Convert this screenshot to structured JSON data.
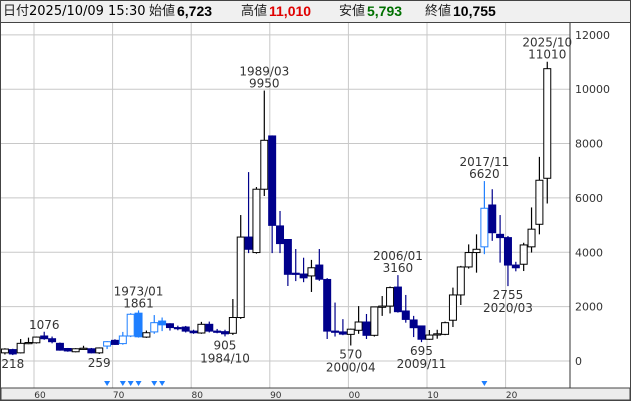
{
  "header": {
    "date_label": "日付",
    "date_value": "2025/10/09 15:30",
    "open_label": "始値",
    "open_value": "6,723",
    "high_label": "高値",
    "high_value": "11,010",
    "low_label": "安値",
    "low_value": "5,793",
    "close_label": "終値",
    "close_value": "10,755"
  },
  "colors": {
    "up_border": "#000000",
    "down_fill": "#00008b",
    "adjusted": "#1e7fff",
    "high_text": "#e00000",
    "low_text": "#007000",
    "grid": "#c8c8c8"
  },
  "chart_data": {
    "type": "candlestick",
    "period": "yearly",
    "y_ticks": [
      0,
      2000,
      4000,
      6000,
      8000,
      10000,
      12000
    ],
    "ylim": [
      -500,
      12300
    ],
    "x_ticks": [
      {
        "year": 1960,
        "label": "60"
      },
      {
        "year": 1970,
        "label": "70"
      },
      {
        "year": 1980,
        "label": "80"
      },
      {
        "year": 1990,
        "label": "90"
      },
      {
        "year": 2000,
        "label": "00"
      },
      {
        "year": 2010,
        "label": "10"
      },
      {
        "year": 2020,
        "label": "20"
      }
    ],
    "grid": true,
    "marker_years": [
      1969,
      1971,
      1972,
      1973,
      1975,
      1976,
      2017
    ],
    "candles": [
      [
        1956,
        300,
        470,
        240,
        440,
        "up"
      ],
      [
        1957,
        420,
        450,
        218,
        260,
        "down"
      ],
      [
        1958,
        300,
        810,
        280,
        650,
        "up"
      ],
      [
        1959,
        650,
        860,
        620,
        680,
        "up"
      ],
      [
        1960,
        670,
        900,
        640,
        880,
        "up"
      ],
      [
        1961,
        920,
        1076,
        780,
        820,
        "down"
      ],
      [
        1962,
        820,
        900,
        650,
        710,
        "down"
      ],
      [
        1963,
        650,
        680,
        380,
        400,
        "down"
      ],
      [
        1964,
        460,
        480,
        340,
        370,
        "down"
      ],
      [
        1965,
        340,
        470,
        320,
        450,
        "up"
      ],
      [
        1966,
        450,
        560,
        420,
        470,
        "up"
      ],
      [
        1967,
        450,
        480,
        280,
        300,
        "down"
      ],
      [
        1968,
        300,
        500,
        259,
        480,
        "up"
      ],
      [
        1969,
        550,
        730,
        440,
        710,
        "adj-up"
      ],
      [
        1970,
        760,
        800,
        590,
        610,
        "down"
      ],
      [
        1971,
        640,
        1070,
        600,
        920,
        "adj-up"
      ],
      [
        1972,
        920,
        1760,
        880,
        1720,
        "adj-up"
      ],
      [
        1973,
        1760,
        1861,
        860,
        890,
        "adj-down"
      ],
      [
        1974,
        880,
        1120,
        850,
        1040,
        "up"
      ],
      [
        1975,
        1070,
        1690,
        1000,
        1410,
        "adj-up"
      ],
      [
        1976,
        1470,
        1600,
        1100,
        1330,
        "adj-down"
      ],
      [
        1977,
        1370,
        1390,
        1120,
        1230,
        "down"
      ],
      [
        1978,
        1230,
        1300,
        1130,
        1200,
        "down"
      ],
      [
        1979,
        1250,
        1290,
        1050,
        1100,
        "down"
      ],
      [
        1980,
        1100,
        1150,
        1000,
        1040,
        "down"
      ],
      [
        1981,
        1030,
        1440,
        1000,
        1350,
        "up"
      ],
      [
        1982,
        1350,
        1450,
        1050,
        1100,
        "down"
      ],
      [
        1983,
        1100,
        1180,
        1020,
        1060,
        "down"
      ],
      [
        1984,
        1080,
        1150,
        905,
        1000,
        "down"
      ],
      [
        1985,
        1020,
        2280,
        960,
        1600,
        "up"
      ],
      [
        1986,
        1600,
        5370,
        1550,
        4560,
        "up"
      ],
      [
        1987,
        4560,
        6950,
        3970,
        4110,
        "down"
      ],
      [
        1988,
        3990,
        6400,
        3950,
        6320,
        "up"
      ],
      [
        1989,
        6320,
        9950,
        6070,
        8120,
        "up"
      ],
      [
        1990,
        8280,
        8300,
        3970,
        4990,
        "down"
      ],
      [
        1991,
        4970,
        5520,
        3970,
        4320,
        "down"
      ],
      [
        1992,
        4470,
        4480,
        2760,
        3190,
        "down"
      ],
      [
        1993,
        3230,
        4120,
        2940,
        3190,
        "down"
      ],
      [
        1994,
        3200,
        3800,
        2900,
        3060,
        "down"
      ],
      [
        1995,
        3130,
        3720,
        2540,
        3430,
        "up"
      ],
      [
        1996,
        3530,
        4120,
        2950,
        3010,
        "down"
      ],
      [
        1997,
        3000,
        3050,
        810,
        1100,
        "down"
      ],
      [
        1998,
        1100,
        2150,
        900,
        1080,
        "down"
      ],
      [
        1999,
        1070,
        1540,
        950,
        990,
        "down"
      ],
      [
        2000,
        980,
        1190,
        570,
        1170,
        "up"
      ],
      [
        2001,
        1130,
        2020,
        1000,
        1435,
        "up"
      ],
      [
        2002,
        1435,
        1730,
        810,
        945,
        "down"
      ],
      [
        2003,
        945,
        2000,
        900,
        1990,
        "up"
      ],
      [
        2004,
        1990,
        2390,
        1660,
        2020,
        "up"
      ],
      [
        2005,
        2020,
        2740,
        1750,
        2700,
        "up"
      ],
      [
        2006,
        2720,
        3160,
        1780,
        1815,
        "down"
      ],
      [
        2007,
        1840,
        2430,
        1410,
        1530,
        "down"
      ],
      [
        2008,
        1510,
        1660,
        880,
        1225,
        "down"
      ],
      [
        2009,
        1290,
        1300,
        695,
        800,
        "down"
      ],
      [
        2010,
        800,
        1140,
        780,
        955,
        "up"
      ],
      [
        2011,
        960,
        1150,
        820,
        1000,
        "up"
      ],
      [
        2012,
        980,
        1450,
        950,
        1410,
        "up"
      ],
      [
        2013,
        1500,
        2700,
        1250,
        2430,
        "up"
      ],
      [
        2014,
        2430,
        3500,
        2060,
        3460,
        "up"
      ],
      [
        2015,
        3460,
        4290,
        3400,
        3990,
        "up"
      ],
      [
        2016,
        3990,
        4660,
        3250,
        4110,
        "up"
      ],
      [
        2017,
        4200,
        6620,
        3930,
        5620,
        "adj-up"
      ],
      [
        2018,
        5740,
        6320,
        4420,
        4720,
        "down"
      ],
      [
        2019,
        4660,
        5370,
        3620,
        4540,
        "down"
      ],
      [
        2020,
        4540,
        4600,
        2755,
        3530,
        "down"
      ],
      [
        2021,
        3530,
        3650,
        3300,
        3430,
        "down"
      ],
      [
        2022,
        3560,
        4350,
        3310,
        4270,
        "up"
      ],
      [
        2023,
        4200,
        5650,
        3990,
        4850,
        "up"
      ],
      [
        2024,
        5030,
        7510,
        4660,
        6650,
        "up"
      ],
      [
        2025,
        6723,
        11010,
        5793,
        10755,
        "up"
      ]
    ],
    "annotations": [
      {
        "year": 1957,
        "value": "218",
        "date": "",
        "where": "below"
      },
      {
        "year": 1961,
        "value": "1076",
        "date": "",
        "where": "above"
      },
      {
        "year": 1968,
        "value": "259",
        "date": "",
        "where": "below"
      },
      {
        "year": 1973,
        "value": "1861",
        "date": "1973/01",
        "where": "above"
      },
      {
        "year": 1984,
        "value": "905",
        "date": "1984/10",
        "where": "below"
      },
      {
        "year": 1989,
        "value": "9950",
        "date": "1989/03",
        "where": "above"
      },
      {
        "year": 2000,
        "value": "570",
        "date": "2000/04",
        "where": "below"
      },
      {
        "year": 2006,
        "value": "3160",
        "date": "2006/01",
        "where": "above"
      },
      {
        "year": 2009,
        "value": "695",
        "date": "2009/11",
        "where": "below"
      },
      {
        "year": 2017,
        "value": "6620",
        "date": "2017/11",
        "where": "above"
      },
      {
        "year": 2020,
        "value": "2755",
        "date": "2020/03",
        "where": "below"
      },
      {
        "year": 2025,
        "value": "11010",
        "date": "2025/10",
        "where": "above"
      }
    ]
  }
}
